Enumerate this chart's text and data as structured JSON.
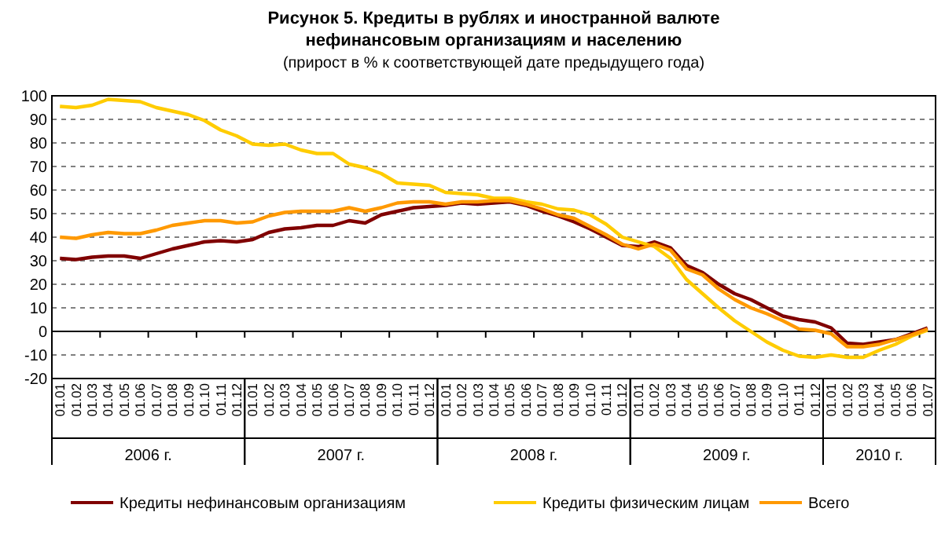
{
  "chart_data": {
    "type": "line",
    "title": "Рисунок 5. Кредиты в рублях и иностранной валюте нефинансовым организациям и населению",
    "subtitle": "(прирост в % к соответствующей дате предыдущего года)",
    "categories": [
      "01.01",
      "01.02",
      "01.03",
      "01.04",
      "01.05",
      "01.06",
      "01.07",
      "01.08",
      "01.09",
      "01.10",
      "01.11",
      "01.12",
      "01.01",
      "01.02",
      "01.03",
      "01.04",
      "01.05",
      "01.06",
      "01.07",
      "01.08",
      "01.09",
      "01.10",
      "01.11",
      "01.12",
      "01.01",
      "01.02",
      "01.03",
      "01.04",
      "01.05",
      "01.06",
      "01.07",
      "01.08",
      "01.09",
      "01.10",
      "01.11",
      "01.12",
      "01.01",
      "01.02",
      "01.03",
      "01.04",
      "01.05",
      "01.06",
      "01.07",
      "01.08",
      "01.09",
      "01.10",
      "01.11",
      "01.12",
      "01.01",
      "01.02",
      "01.03",
      "01.04",
      "01.05",
      "01.06",
      "01.07"
    ],
    "series": [
      {
        "name": "Кредиты нефинансовым организациям",
        "color": "#800000",
        "values": [
          31,
          30.5,
          31.5,
          32,
          32,
          31,
          33,
          35,
          36.5,
          38,
          38.5,
          38,
          39,
          42,
          43.5,
          44,
          45,
          45,
          47,
          46,
          49.5,
          51,
          52.5,
          53,
          53.5,
          54.5,
          54,
          54.5,
          55,
          53.5,
          51,
          49,
          46.5,
          43.5,
          40,
          36.5,
          36,
          38,
          35.5,
          28,
          25,
          20,
          16,
          13.5,
          10,
          6.5,
          5,
          4,
          1.5,
          -5,
          -5.5,
          -4.5,
          -3.5,
          -1,
          1.5
        ]
      },
      {
        "name": "Кредиты физическим лицам",
        "color": "#ffcc00",
        "values": [
          95.5,
          95,
          96,
          98.5,
          98,
          97.5,
          95,
          93.5,
          92,
          89.5,
          85.5,
          83,
          79.5,
          79,
          79.5,
          77,
          75.5,
          75.5,
          71,
          69.5,
          67,
          63,
          62.5,
          62,
          59,
          58.5,
          58,
          56.5,
          56.5,
          55,
          54,
          52,
          51.5,
          49.5,
          45.5,
          40,
          38,
          36,
          31,
          22,
          16,
          10,
          4.5,
          0,
          -4.5,
          -8,
          -10.5,
          -11,
          -10,
          -11,
          -11,
          -8,
          -5.5,
          -2,
          0.5
        ]
      },
      {
        "name": "Всего",
        "color": "#ff9900",
        "values": [
          40,
          39.5,
          41,
          42,
          41.5,
          41.5,
          43,
          45,
          46,
          47,
          47,
          46,
          46.5,
          49,
          50.5,
          51,
          51,
          51,
          52.5,
          51,
          52.5,
          54.5,
          55,
          55,
          54,
          55,
          55,
          55.5,
          55.5,
          54,
          52,
          49.5,
          48,
          44.5,
          41,
          37,
          35,
          37,
          34.5,
          26.5,
          24,
          18,
          13.5,
          10,
          7.5,
          4.5,
          1,
          0.5,
          -1,
          -6.5,
          -6.5,
          -5.5,
          -3.5,
          -1.5,
          1
        ]
      }
    ],
    "ylim": [
      -20,
      100
    ],
    "yticks": [
      -20,
      -10,
      0,
      10,
      20,
      30,
      40,
      50,
      60,
      70,
      80,
      90,
      100
    ],
    "grid": "y",
    "legend": "bottom",
    "annotations": [
      "2006 г.",
      "2007 г.",
      "2008 г.",
      "2009 г.",
      "2010 г."
    ]
  }
}
